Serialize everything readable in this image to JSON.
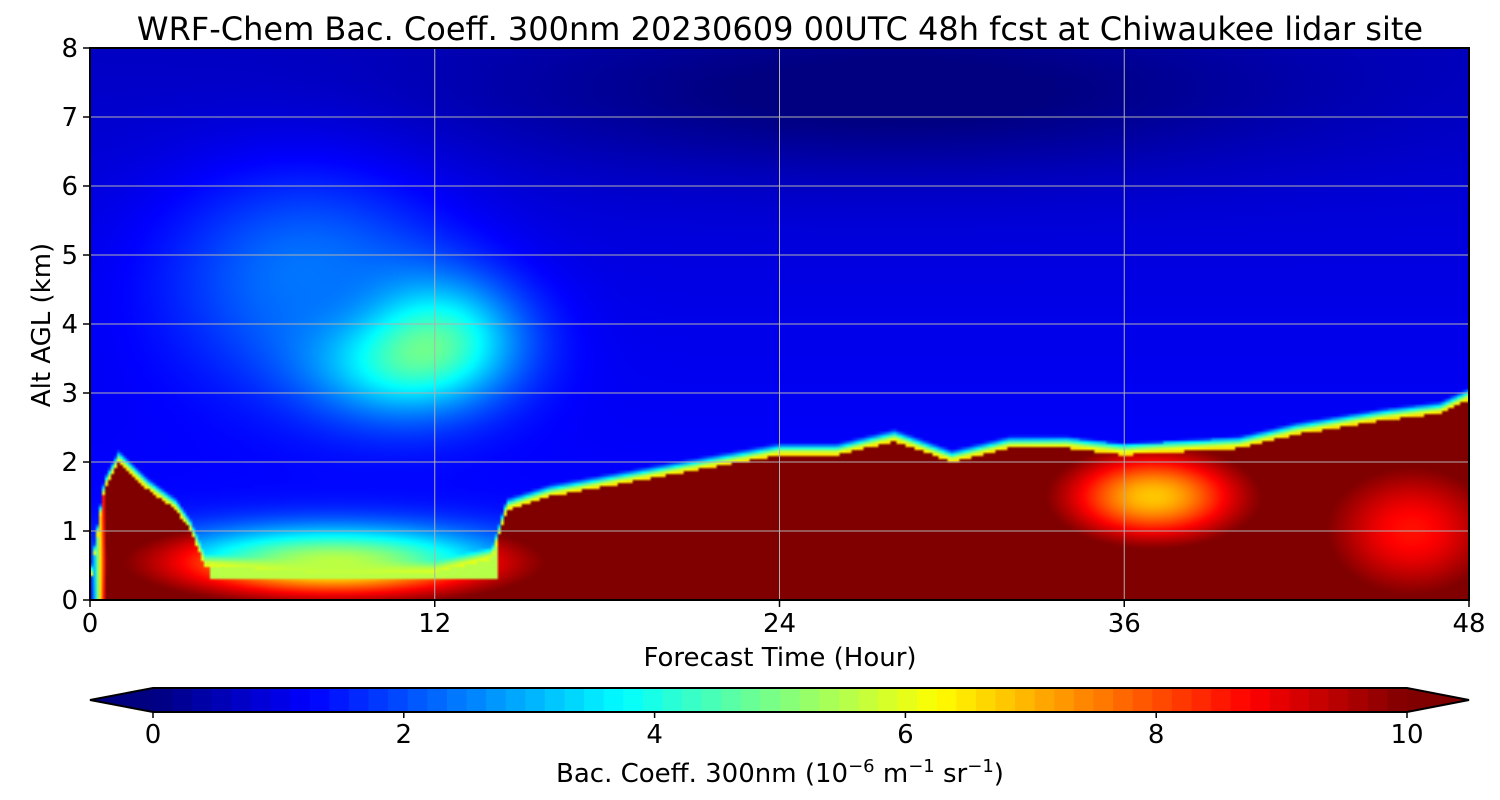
{
  "chart_data": {
    "type": "heatmap",
    "title": "WRF-Chem Bac. Coeff. 300nm  20230609 00UTC 48h fcst at Chiwaukee lidar site",
    "xlabel": "Forecast Time (Hour)",
    "ylabel": "Alt AGL (km)",
    "xlim": [
      0,
      48
    ],
    "ylim": [
      0,
      8
    ],
    "xticks": [
      0,
      12,
      24,
      36,
      48
    ],
    "yticks": [
      0,
      1,
      2,
      3,
      4,
      5,
      6,
      7,
      8
    ],
    "grid": true,
    "colorbar": {
      "label_main": "Bac. Coeff. 300nm  (10",
      "label_exp1": "−6",
      "label_mid": " m",
      "label_exp2": "−1",
      "label_mid2": " sr",
      "label_exp3": "−1",
      "label_end": ")",
      "ticks": [
        0,
        2,
        4,
        6,
        8,
        10
      ],
      "range": [
        0,
        10
      ],
      "extend": "both",
      "colormap": "jet"
    },
    "background_value": 1.4,
    "features": [
      {
        "name": "upper-aloft-plume",
        "value": 6.2,
        "x": 11,
        "y": 3.75,
        "sx": 2.4,
        "sy": 0.65
      },
      {
        "name": "upper-aloft-halo",
        "value": 2.4,
        "x": 7.5,
        "y": 4.7,
        "sx": 3.5,
        "sy": 1.1
      },
      {
        "name": "boundary-layer-early",
        "value": 5.6,
        "x": 8.5,
        "y": 0.55,
        "sx": 4.0,
        "sy": 0.35
      },
      {
        "name": "boundary-layer-main",
        "value": 11,
        "x": 30,
        "y": 1.0,
        "sx": 14,
        "sy": 0.85
      },
      {
        "name": "bl-mid-yellow",
        "value": 6.8,
        "x": 37,
        "y": 1.5,
        "sx": 2.2,
        "sy": 0.45
      },
      {
        "name": "bl-late-orange",
        "value": 8.6,
        "x": 46,
        "y": 1.0,
        "sx": 2.2,
        "sy": 0.7
      },
      {
        "name": "dark-upper-band",
        "value": 0.2,
        "x": 28,
        "y": 7.3,
        "sx": 10,
        "sy": 0.8
      }
    ],
    "pbl_top_km": [
      [
        0,
        0.2
      ],
      [
        0.5,
        1.6
      ],
      [
        1,
        2.0
      ],
      [
        2,
        1.6
      ],
      [
        3,
        1.3
      ],
      [
        3.5,
        1.0
      ],
      [
        4,
        0.5
      ],
      [
        8,
        0.4
      ],
      [
        12,
        0.4
      ],
      [
        14,
        0.6
      ],
      [
        14.5,
        1.3
      ],
      [
        16,
        1.5
      ],
      [
        20,
        1.8
      ],
      [
        24,
        2.1
      ],
      [
        26,
        2.1
      ],
      [
        28,
        2.3
      ],
      [
        30,
        2.0
      ],
      [
        32,
        2.2
      ],
      [
        34,
        2.2
      ],
      [
        36,
        2.1
      ],
      [
        40,
        2.2
      ],
      [
        42,
        2.4
      ],
      [
        45,
        2.6
      ],
      [
        47,
        2.7
      ],
      [
        48,
        2.9
      ]
    ]
  }
}
